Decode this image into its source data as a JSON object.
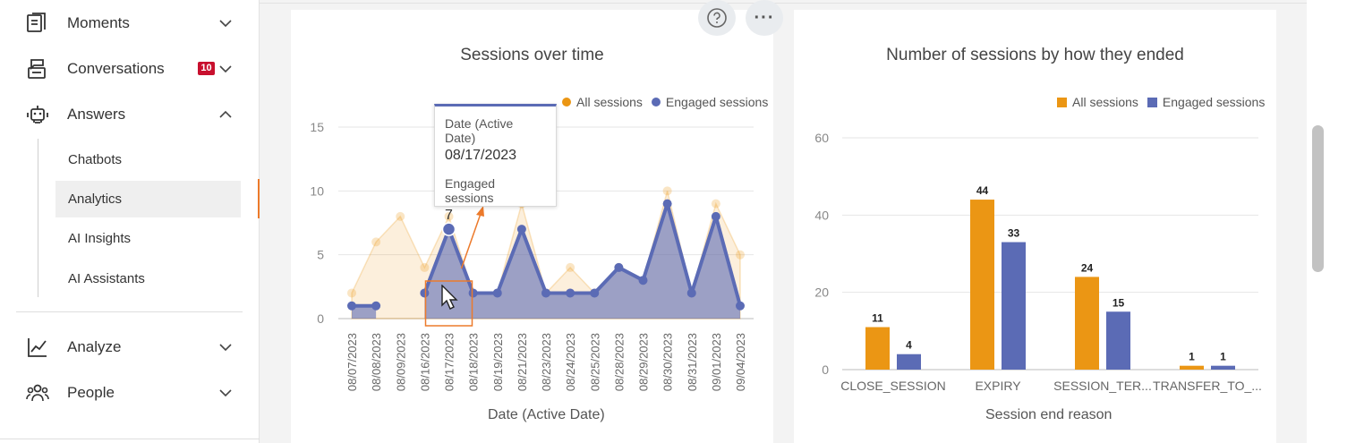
{
  "sidebar": {
    "items": [
      {
        "label": "Moments",
        "icon": "moments-icon"
      },
      {
        "label": "Conversations",
        "icon": "conversations-icon",
        "badge": "10"
      },
      {
        "label": "Answers",
        "icon": "robot-icon"
      },
      {
        "label": "Analyze",
        "icon": "analyze-chart-icon"
      },
      {
        "label": "People",
        "icon": "people-icon"
      }
    ],
    "subitems": [
      "Chatbots",
      "Analytics",
      "AI Insights",
      "AI Assistants"
    ],
    "active_subitem": "Analytics"
  },
  "colors": {
    "orange": "#eb9614",
    "blue": "#5b6bb5",
    "accent": "#ec7a2b",
    "badge": "#c8102e"
  },
  "chart_data": [
    {
      "type": "area",
      "title": "Sessions over time",
      "xlabel": "Date (Active Date)",
      "ylabel": "",
      "ylim": [
        0,
        15
      ],
      "yticks": [
        0,
        5,
        10,
        15
      ],
      "categories": [
        "08/07/2023",
        "08/08/2023",
        "08/09/2023",
        "08/16/2023",
        "08/17/2023",
        "08/18/2023",
        "08/19/2023",
        "08/21/2023",
        "08/23/2023",
        "08/24/2023",
        "08/25/2023",
        "08/28/2023",
        "08/29/2023",
        "08/30/2023",
        "08/31/2023",
        "09/01/2023",
        "09/04/2023"
      ],
      "series": [
        {
          "name": "All sessions",
          "color": "#eb9614",
          "values": [
            2,
            6,
            8,
            4,
            8,
            2,
            2,
            9,
            2,
            4,
            2,
            4,
            3,
            10,
            2,
            9,
            5
          ]
        },
        {
          "name": "Engaged sessions",
          "color": "#5b6bb5",
          "values": [
            1,
            1,
            null,
            2,
            7,
            2,
            2,
            7,
            2,
            2,
            2,
            4,
            3,
            9,
            2,
            8,
            1
          ]
        }
      ],
      "legend": "top-right",
      "grid": true,
      "tooltip": {
        "label1": "Date (Active Date)",
        "value1": "08/17/2023",
        "label2": "Engaged sessions",
        "value2": "7"
      }
    },
    {
      "type": "bar",
      "title": "Number of sessions by how they ended",
      "xlabel": "Session end reason",
      "ylabel": "",
      "ylim": [
        0,
        60
      ],
      "yticks": [
        0,
        20,
        40,
        60
      ],
      "categories": [
        "CLOSE_SESSION",
        "EXPIRY",
        "SESSION_TER...",
        "TRANSFER_TO_..."
      ],
      "series": [
        {
          "name": "All sessions",
          "color": "#eb9614",
          "values": [
            11,
            44,
            24,
            1
          ]
        },
        {
          "name": "Engaged sessions",
          "color": "#5b6bb5",
          "values": [
            4,
            33,
            15,
            1
          ]
        }
      ],
      "legend": "top-right",
      "grid": true
    }
  ]
}
